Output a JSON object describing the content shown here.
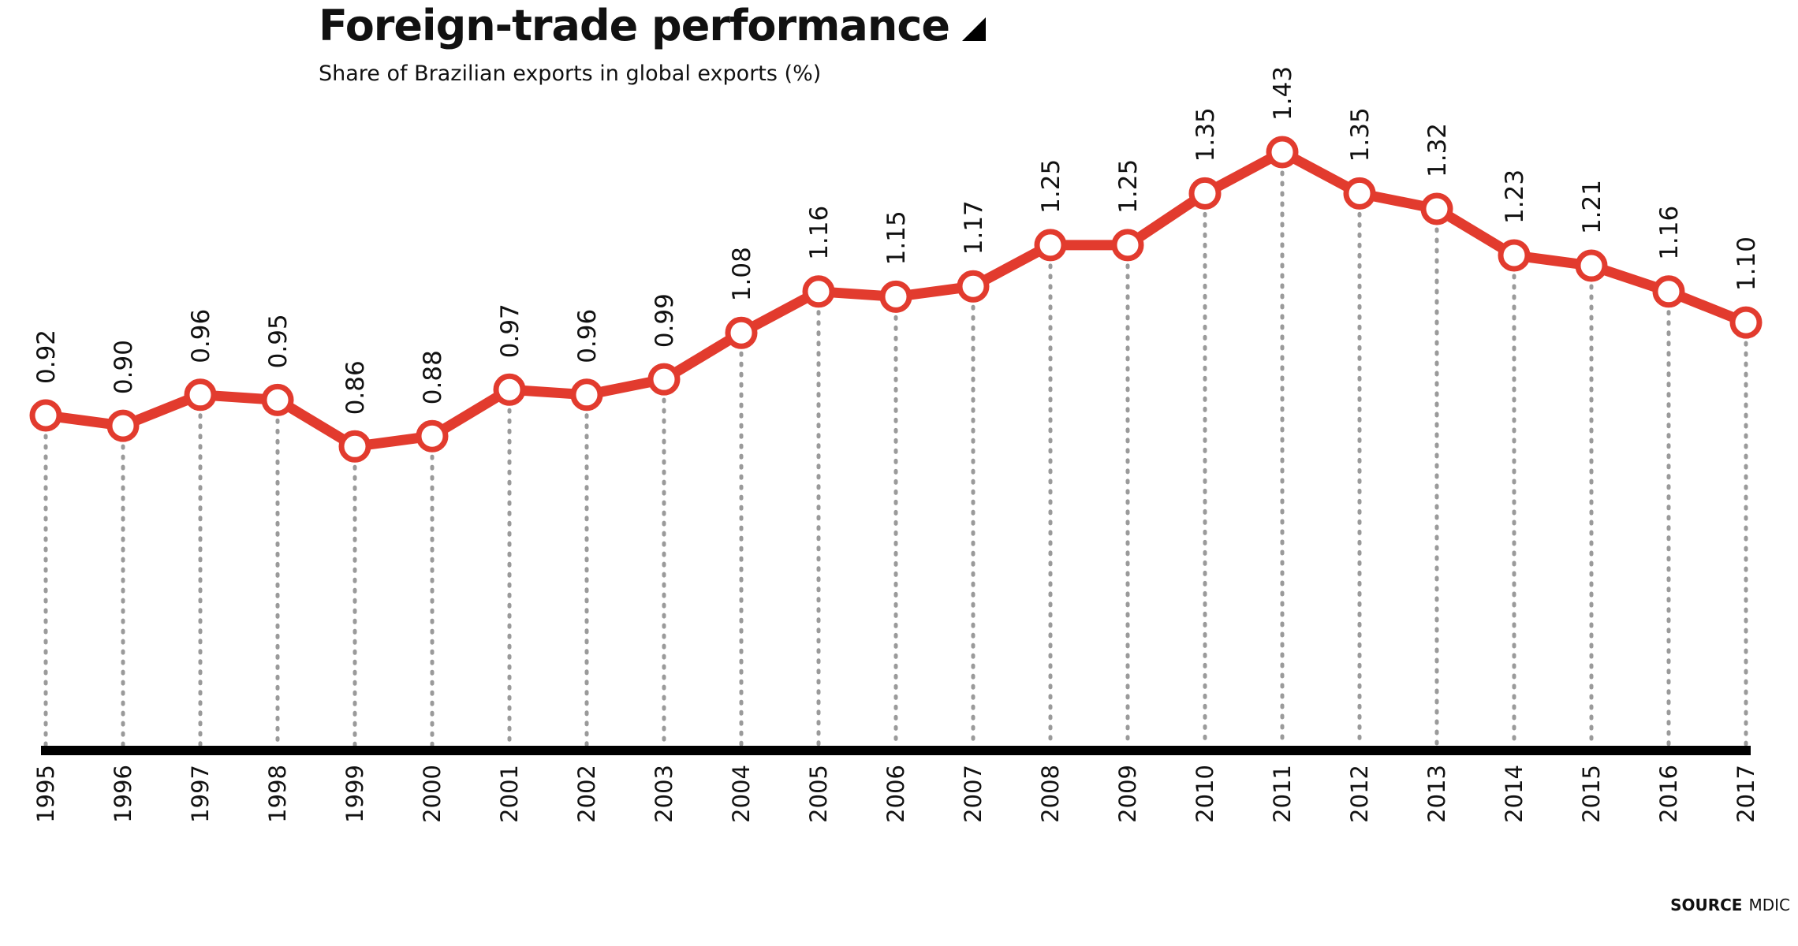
{
  "header": {
    "title": "Foreign-trade performance",
    "subtitle": "Share of Brazilian exports in global exports (%)"
  },
  "footer": {
    "source_label": "SOURCE",
    "source_value": "MDIC"
  },
  "colors": {
    "line": "#e23b2e",
    "marker_fill": "#ffffff",
    "guide": "#9a9a9a",
    "axis": "#000000"
  },
  "icons": {
    "title_marker": "triangle-corner-icon"
  },
  "chart_data": {
    "type": "line",
    "title": "Foreign-trade performance",
    "subtitle": "Share of Brazilian exports in global exports (%)",
    "xlabel": "",
    "ylabel": "",
    "x": [
      "1995",
      "1996",
      "1997",
      "1998",
      "1999",
      "2000",
      "2001",
      "2002",
      "2003",
      "2004",
      "2005",
      "2006",
      "2007",
      "2008",
      "2009",
      "2010",
      "2011",
      "2012",
      "2013",
      "2014",
      "2015",
      "2016",
      "2017"
    ],
    "series": [
      {
        "values": [
          0.92,
          0.9,
          0.96,
          0.95,
          0.86,
          0.88,
          0.97,
          0.96,
          0.99,
          1.08,
          1.16,
          1.15,
          1.17,
          1.25,
          1.25,
          1.35,
          1.43,
          1.35,
          1.32,
          1.23,
          1.21,
          1.16,
          1.1
        ],
        "labels": [
          "0.92",
          "0.90",
          "0.96",
          "0.95",
          "0.86",
          "0.88",
          "0.97",
          "0.96",
          "0.99",
          "1.08",
          "1.16",
          "1.15",
          "1.17",
          "1.25",
          "1.25",
          "1.35",
          "1.43",
          "1.35",
          "1.32",
          "1.23",
          "1.21",
          "1.16",
          "1.10"
        ]
      }
    ],
    "ylim": [
      0,
      1.43
    ],
    "grid": "vertical dotted guides at each year",
    "legend": "none"
  }
}
